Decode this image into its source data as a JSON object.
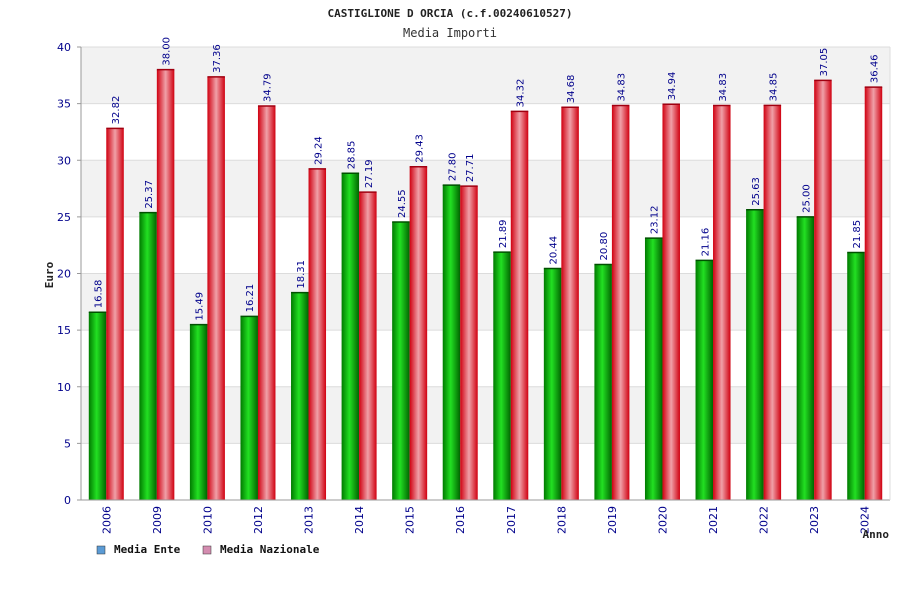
{
  "chart_data": {
    "type": "bar",
    "title": "CASTIGLIONE D ORCIA (c.f.00240610527)",
    "subtitle": "Media Importi",
    "xlabel": "Anno",
    "ylabel": "Euro",
    "ylim": [
      0,
      40
    ],
    "yticks": [
      0,
      5,
      10,
      15,
      20,
      25,
      30,
      35,
      40
    ],
    "grid": true,
    "legend_position": "bottom-left",
    "categories": [
      "2006",
      "2009",
      "2010",
      "2012",
      "2013",
      "2014",
      "2015",
      "2016",
      "2017",
      "2018",
      "2019",
      "2020",
      "2021",
      "2022",
      "2023",
      "2024"
    ],
    "series": [
      {
        "name": "Media Ente",
        "legend_color": "#5b9bd5",
        "bar_color": "#00b000",
        "values": [
          16.58,
          25.37,
          15.49,
          16.21,
          18.31,
          28.85,
          24.55,
          27.8,
          21.89,
          20.44,
          20.8,
          23.12,
          21.16,
          25.63,
          25.0,
          21.85
        ],
        "labels": [
          "16.58",
          "25.37",
          "15.49",
          "16.21",
          "18.31",
          "28.85",
          "24.55",
          "27.80",
          "21.89",
          "20.44",
          "20.80",
          "23.12",
          "21.16",
          "25.63",
          "25.00",
          "21.85"
        ]
      },
      {
        "name": "Media Nazionale",
        "legend_color": "#d48cb0",
        "bar_color": "#e8001a",
        "values": [
          32.82,
          38.0,
          37.36,
          34.79,
          29.24,
          27.19,
          29.43,
          27.71,
          34.32,
          34.68,
          34.83,
          34.94,
          34.83,
          34.85,
          37.05,
          36.46
        ],
        "labels": [
          "32.82",
          "38.00",
          "37.36",
          "34.79",
          "29.24",
          "27.19",
          "29.43",
          "27.71",
          "34.32",
          "34.68",
          "34.83",
          "34.94",
          "34.83",
          "34.85",
          "37.05",
          "36.46"
        ]
      }
    ]
  }
}
